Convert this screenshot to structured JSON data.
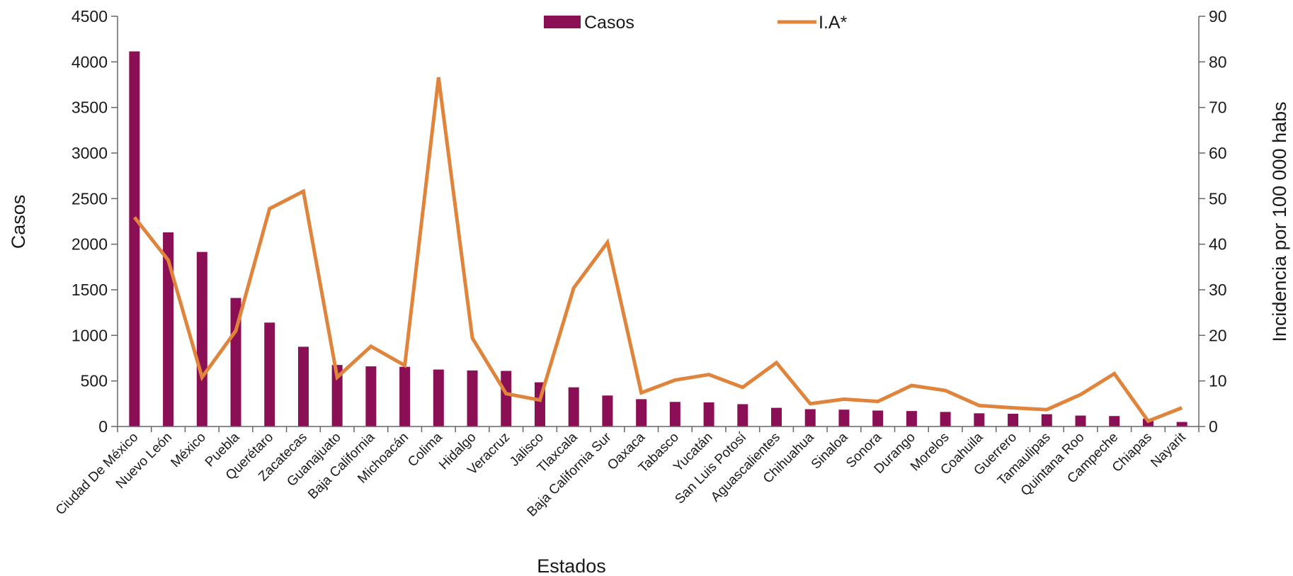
{
  "chart_data": {
    "type": "bar",
    "categories": [
      "Ciudad De México",
      "Nuevo León",
      "México",
      "Puebla",
      "Querétaro",
      "Zacatecas",
      "Guanajuato",
      "Baja California",
      "Michoacán",
      "Colima",
      "Hidalgo",
      "Veracruz",
      "Jalisco",
      "Tlaxcala",
      "Baja California Sur",
      "Oaxaca",
      "Tabasco",
      "Yucatán",
      "San Luis Potosí",
      "Aguascalientes",
      "Chihuahua",
      "Sinaloa",
      "Sonora",
      "Durango",
      "Morelos",
      "Coahuila",
      "Guerrero",
      "Tamaulipas",
      "Quintana Roo",
      "Campeche",
      "Chiapas",
      "Nayarit"
    ],
    "series": [
      {
        "name": "Casos",
        "type": "bar",
        "axis": "left",
        "color": "#8B0F55",
        "values": [
          4115,
          2130,
          1915,
          1410,
          1140,
          875,
          675,
          660,
          655,
          625,
          615,
          610,
          485,
          430,
          340,
          300,
          270,
          265,
          245,
          205,
          190,
          185,
          175,
          170,
          160,
          145,
          140,
          135,
          120,
          115,
          85,
          50
        ]
      },
      {
        "name": "I.A*",
        "type": "line",
        "axis": "right",
        "color": "#E0843C",
        "values": [
          45.9,
          36.5,
          10.8,
          21.0,
          47.8,
          51.6,
          10.8,
          17.6,
          13.4,
          76.6,
          19.4,
          7.2,
          5.8,
          30.4,
          40.4,
          7.4,
          10.2,
          11.4,
          8.6,
          14.0,
          5.0,
          6.0,
          5.5,
          9.0,
          7.9,
          4.6,
          4.1,
          3.7,
          7.0,
          11.6,
          1.2,
          4.1
        ]
      }
    ],
    "xlabel": "Estados",
    "ylabel": "Casos",
    "y2label": "Incidencia por 100 000 habs",
    "ylim": [
      0,
      4500
    ],
    "y2lim": [
      0,
      90
    ],
    "yticks": [
      0,
      500,
      1000,
      1500,
      2000,
      2500,
      3000,
      3500,
      4000,
      4500
    ],
    "y2ticks": [
      0,
      10,
      20,
      30,
      40,
      50,
      60,
      70,
      80,
      90
    ],
    "grid": false,
    "legend": "top-center"
  }
}
